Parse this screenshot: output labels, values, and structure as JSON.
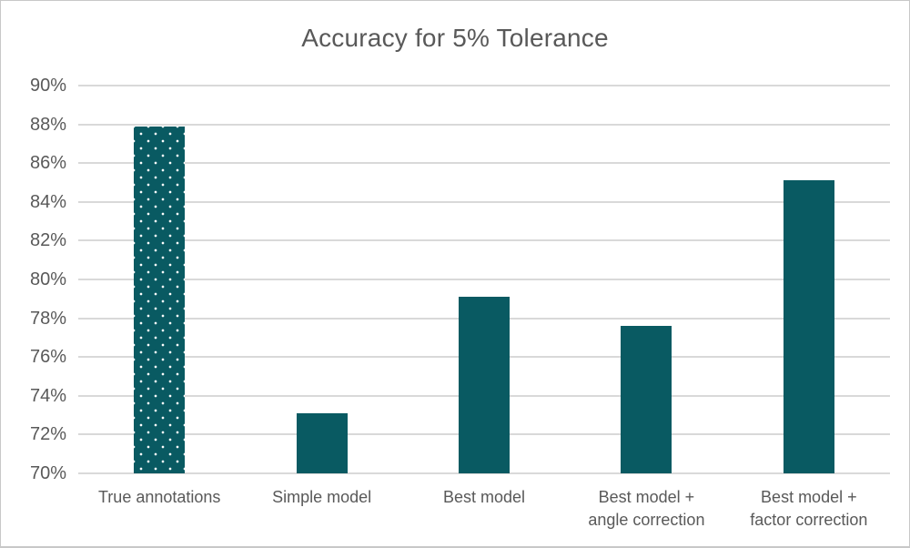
{
  "chart": {
    "title": "Accuracy for 5% Tolerance"
  },
  "chart_data": {
    "type": "bar",
    "title": "Accuracy for 5% Tolerance",
    "categories": [
      "True annotations",
      "Simple model",
      "Best model",
      "Best model +\nangle correction",
      "Best model +\nfactor correction"
    ],
    "values": [
      87.9,
      73.1,
      79.1,
      77.6,
      85.1
    ],
    "value_unit": "%",
    "xlabel": "",
    "ylabel": "",
    "ylim": [
      70,
      90
    ],
    "ytick_step": 2,
    "ytick_suffix": "%",
    "grid": "horizontal",
    "legend": "none",
    "bar_color": "#095a62",
    "bar_patterns": [
      "dots",
      "solid",
      "solid",
      "solid",
      "solid"
    ],
    "pattern_dot_color": "#ffffff"
  },
  "colors": {
    "text": "#595959",
    "gridline": "#d9d9d9",
    "frame_border": "#c8c8c8",
    "background": "#ffffff"
  }
}
